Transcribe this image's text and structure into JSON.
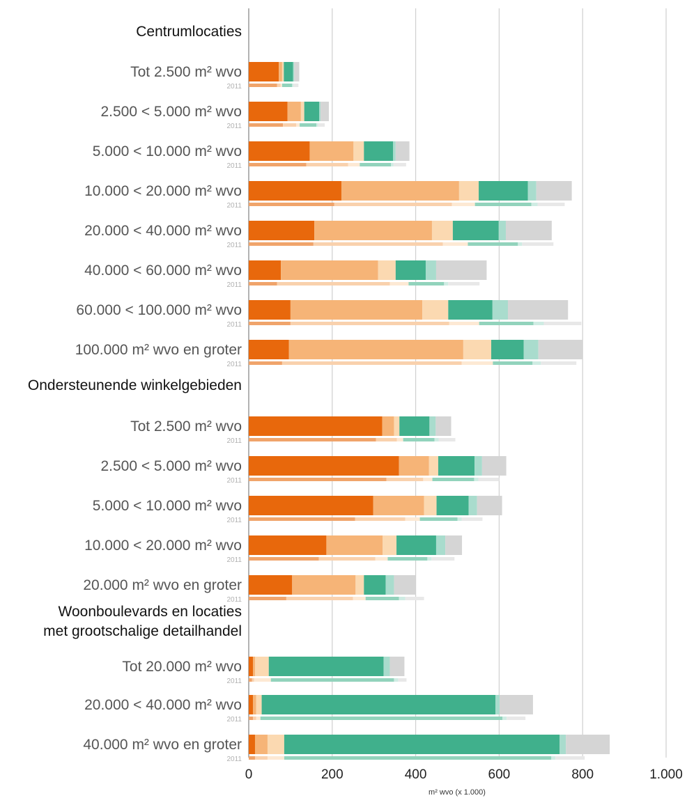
{
  "chart_data": {
    "type": "bar",
    "orientation": "horizontal",
    "stacked": true,
    "xlabel": "m² wvo (x 1.000)",
    "xlim": [
      0,
      1000
    ],
    "x_ticks": [
      "0",
      "200",
      "400",
      "600",
      "800",
      "1.000"
    ],
    "x_tick_values": [
      0,
      200,
      400,
      600,
      800,
      1000
    ],
    "grid": "vertical",
    "comparison_label": "2011",
    "segment_colors": [
      "#e8680c",
      "#f6b477",
      "#fbd9b1",
      "#40b08c",
      "#a9dccd",
      "#d5d5d5"
    ],
    "segment_colors_2011": [
      "#f0a46b",
      "#f9d1ad",
      "#fde9d4",
      "#92d3bc",
      "#cfece3",
      "#e8e8e8"
    ],
    "groups": [
      {
        "title": "Centrumlocaties",
        "rows": [
          {
            "label": "Tot 2.500 m² wvo",
            "current": [
              72,
              8,
              4,
              22,
              3,
              12
            ],
            "y2011": [
              68,
              8,
              4,
              24,
              3,
              12
            ]
          },
          {
            "label": "2.500 < 5.000 m² wvo",
            "current": [
              93,
              32,
              8,
              36,
              3,
              20
            ],
            "y2011": [
              82,
              32,
              8,
              40,
              4,
              16
            ]
          },
          {
            "label": "5.000 < 10.000 m² wvo",
            "current": [
              146,
              105,
              25,
              70,
              6,
              33
            ],
            "y2011": [
              138,
              100,
              28,
              75,
              6,
              30
            ]
          },
          {
            "label": "10.000 < 20.000 m² wvo",
            "current": [
              222,
              282,
              47,
              118,
              20,
              85
            ],
            "y2011": [
              205,
              282,
              55,
              135,
              15,
              65
            ]
          },
          {
            "label": "20.000 < 40.000 m² wvo",
            "current": [
              157,
              282,
              50,
              110,
              17,
              110
            ],
            "y2011": [
              155,
              310,
              60,
              120,
              10,
              75
            ]
          },
          {
            "label": "40.000 < 60.000 m² wvo",
            "current": [
              77,
              233,
              42,
              72,
              25,
              121
            ],
            "y2011": [
              68,
              270,
              45,
              85,
              10,
              75
            ]
          },
          {
            "label": "60.000 < 100.000 m² wvo",
            "current": [
              100,
              316,
              62,
              106,
              37,
              144
            ],
            "y2011": [
              100,
              380,
              72,
              130,
              25,
              90
            ]
          },
          {
            "label": "100.000 m² wvo en groter",
            "current": [
              96,
              418,
              67,
              78,
              35,
              106
            ],
            "y2011": [
              80,
              430,
              75,
              95,
              20,
              85
            ]
          }
        ]
      },
      {
        "title": "Ondersteunende winkelgebieden",
        "rows": [
          {
            "label": "Tot 2.500 m² wvo",
            "current": [
              320,
              28,
              13,
              72,
              15,
              37
            ],
            "y2011": [
              305,
              50,
              15,
              75,
              10,
              40
            ]
          },
          {
            "label": "2.500 < 5.000 m² wvo",
            "current": [
              360,
              72,
              22,
              87,
              18,
              58
            ],
            "y2011": [
              330,
              88,
              22,
              100,
              10,
              50
            ]
          },
          {
            "label": "5.000 < 10.000 m² wvo",
            "current": [
              298,
              122,
              30,
              77,
              20,
              60
            ],
            "y2011": [
              255,
              120,
              35,
              90,
              10,
              50
            ]
          },
          {
            "label": "10.000 < 20.000 m² wvo",
            "current": [
              186,
              135,
              33,
              95,
              22,
              40
            ],
            "y2011": [
              168,
              135,
              30,
              95,
              10,
              55
            ]
          },
          {
            "label": "20.000 m² wvo en groter",
            "current": [
              104,
              152,
              20,
              52,
              20,
              52
            ],
            "y2011": [
              90,
              160,
              30,
              80,
              15,
              45
            ]
          }
        ]
      },
      {
        "title": "Woonboulevards en locaties\nmet grootschalige detailhandel",
        "rows": [
          {
            "label": "Tot 20.000 m² wvo",
            "current": [
              10,
              5,
              33,
              275,
              15,
              35
            ],
            "y2011": [
              8,
              5,
              40,
              295,
              10,
              20
            ]
          },
          {
            "label": "20.000 < 40.000 m² wvo",
            "current": [
              10,
              8,
              13,
              560,
              10,
              80
            ],
            "y2011": [
              10,
              8,
              10,
              580,
              10,
              45
            ]
          },
          {
            "label": "40.000 m² wvo en groter",
            "current": [
              15,
              30,
              40,
              660,
              15,
              105
            ],
            "y2011": [
              15,
              30,
              40,
              640,
              10,
              70
            ]
          }
        ]
      }
    ]
  }
}
